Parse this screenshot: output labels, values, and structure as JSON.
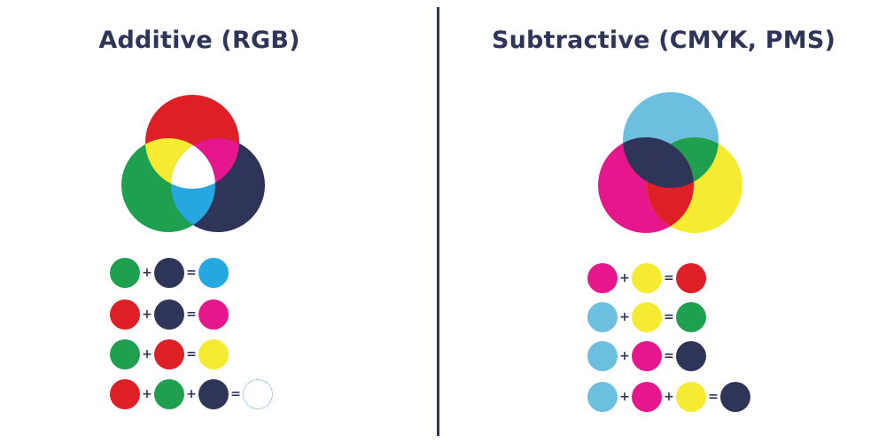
{
  "colors": {
    "red": "#de1f26",
    "green": "#1fa04f",
    "navy": "#2e3558",
    "cyan": "#27a7df",
    "magenta": "#e6178c",
    "yellow": "#f6eb30",
    "white": "#ffffff",
    "light_cyan": "#6cbfdf"
  },
  "additive": {
    "title": "Additive (RGB)",
    "equations": [
      {
        "operands": [
          "green",
          "navy"
        ],
        "result": "cyan"
      },
      {
        "operands": [
          "red",
          "navy"
        ],
        "result": "magenta"
      },
      {
        "operands": [
          "green",
          "red"
        ],
        "result": "yellow"
      },
      {
        "operands": [
          "red",
          "green",
          "navy"
        ],
        "result": "white"
      }
    ]
  },
  "subtractive": {
    "title": "Subtractive (CMYK, PMS)",
    "equations": [
      {
        "operands": [
          "magenta",
          "yellow"
        ],
        "result": "red"
      },
      {
        "operands": [
          "light_cyan",
          "yellow"
        ],
        "result": "green"
      },
      {
        "operands": [
          "light_cyan",
          "magenta"
        ],
        "result": "navy"
      },
      {
        "operands": [
          "light_cyan",
          "magenta",
          "yellow"
        ],
        "result": "navy"
      }
    ]
  },
  "symbols": {
    "plus": "+",
    "equals": "="
  }
}
